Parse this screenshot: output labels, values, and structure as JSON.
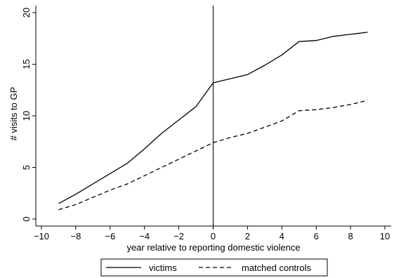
{
  "chart_data": {
    "type": "line",
    "title": "",
    "xlabel": "year relative to reporting domestic violence",
    "ylabel": "# visits to GP",
    "xlim": [
      -10,
      10
    ],
    "ylim": [
      0,
      20
    ],
    "xticks": [
      -10,
      -8,
      -6,
      -4,
      -2,
      0,
      2,
      4,
      6,
      8,
      10
    ],
    "yticks": [
      0,
      5,
      10,
      15,
      20
    ],
    "grid": false,
    "reference_line_x": 0,
    "legend_position": "bottom",
    "series": [
      {
        "name": "victims",
        "style": "solid",
        "color": "#000000",
        "x": [
          -9,
          -8,
          -7,
          -6,
          -5,
          -4,
          -3,
          -2,
          -1,
          0,
          1,
          2,
          3,
          4,
          5,
          6,
          7,
          8,
          9
        ],
        "y": [
          1.5,
          2.4,
          3.4,
          4.4,
          5.4,
          6.8,
          8.3,
          9.6,
          10.9,
          13.2,
          13.6,
          14.0,
          14.9,
          15.9,
          17.2,
          17.3,
          17.7,
          17.9,
          18.1
        ]
      },
      {
        "name": "matched controls",
        "style": "dashed",
        "color": "#000000",
        "x": [
          -9,
          -8,
          -7,
          -6,
          -5,
          -4,
          -3,
          -2,
          -1,
          0,
          1,
          2,
          3,
          4,
          5,
          6,
          7,
          8,
          9
        ],
        "y": [
          0.9,
          1.4,
          2.1,
          2.8,
          3.4,
          4.2,
          5.0,
          5.8,
          6.6,
          7.4,
          7.9,
          8.3,
          8.9,
          9.5,
          10.5,
          10.6,
          10.8,
          11.1,
          11.5
        ]
      }
    ]
  }
}
